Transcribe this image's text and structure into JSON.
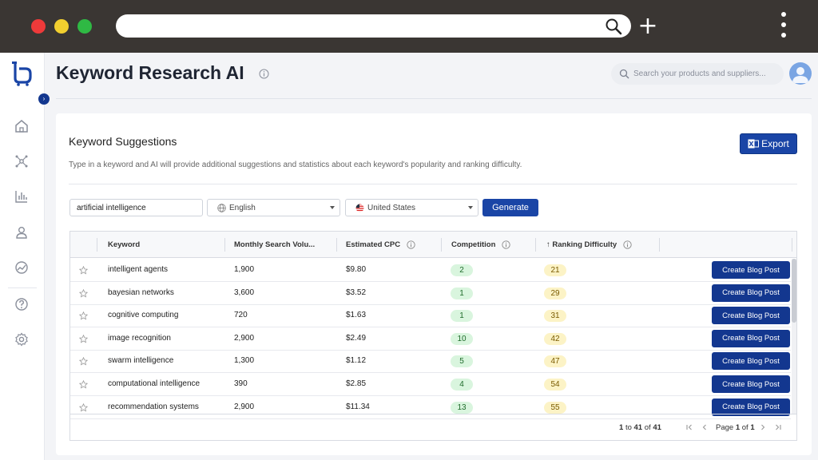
{
  "browser": {
    "new_tab_symbol": "+"
  },
  "header": {
    "title": "Keyword Research AI",
    "search_placeholder": "Search your products and suppliers..."
  },
  "card": {
    "title": "Keyword Suggestions",
    "description": "Type in a keyword and AI will provide additional suggestions and statistics about each keyword's popularity and ranking difficulty.",
    "export_label": "Export"
  },
  "form": {
    "keyword_value": "artificial intelligence",
    "language": "English",
    "country": "United States",
    "generate_label": "Generate"
  },
  "table": {
    "columns": {
      "keyword": "Keyword",
      "volume": "Monthly Search Volu...",
      "cpc": "Estimated CPC",
      "competition": "Competition",
      "difficulty": "Ranking Difficulty"
    },
    "sort_indicator": "↑",
    "row_action_label": "Create Blog Post",
    "rows": [
      {
        "keyword": "intelligent agents",
        "volume": "1,900",
        "cpc": "$9.80",
        "competition": "2",
        "difficulty": "21"
      },
      {
        "keyword": "bayesian networks",
        "volume": "3,600",
        "cpc": "$3.52",
        "competition": "1",
        "difficulty": "29"
      },
      {
        "keyword": "cognitive computing",
        "volume": "720",
        "cpc": "$1.63",
        "competition": "1",
        "difficulty": "31"
      },
      {
        "keyword": "image recognition",
        "volume": "2,900",
        "cpc": "$2.49",
        "competition": "10",
        "difficulty": "42"
      },
      {
        "keyword": "swarm intelligence",
        "volume": "1,300",
        "cpc": "$1.12",
        "competition": "5",
        "difficulty": "47"
      },
      {
        "keyword": "computational intelligence",
        "volume": "390",
        "cpc": "$2.85",
        "competition": "4",
        "difficulty": "54"
      },
      {
        "keyword": "recommendation systems",
        "volume": "2,900",
        "cpc": "$11.34",
        "competition": "13",
        "difficulty": "55"
      }
    ]
  },
  "pagination": {
    "range_start": "1",
    "to_word": "to",
    "range_end": "41",
    "of_word": "of",
    "total": "41",
    "page_word": "Page",
    "current_page": "1",
    "page_of_word": "of",
    "total_pages": "1"
  },
  "colors": {
    "brand": "#1a45a6",
    "brand_dark": "#13378f",
    "competition_badge": "#d9f5de",
    "difficulty_badge": "#fcf3c6",
    "chrome_bar": "#3a3633"
  },
  "icons": {
    "sidebar": [
      "home-icon",
      "network-icon",
      "bar-chart-icon",
      "user-icon",
      "analytics-icon",
      "help-icon",
      "settings-icon"
    ]
  }
}
